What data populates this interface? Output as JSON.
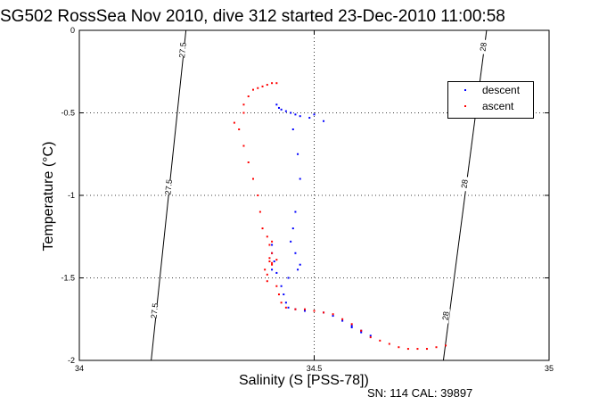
{
  "chart_data": {
    "type": "scatter",
    "title": "SG502 RossSea Nov 2010, dive 312 started 23-Dec-2010 11:00:58",
    "xlabel": "Salinity (S [PSS-78])",
    "ylabel": "Temperature (°C)",
    "xlim": [
      34,
      35
    ],
    "ylim": [
      -2,
      0
    ],
    "xticks": [
      "34",
      "34.5",
      "35"
    ],
    "yticks": [
      "0",
      "-0.5",
      "-1",
      "-1.5",
      "-2"
    ],
    "grid": true,
    "legend_position": "top-right",
    "footer": "SN: 114  CAL: 39897",
    "isopycnals": [
      {
        "label": "27.5",
        "points": [
          [
            34.227,
            0
          ],
          [
            34.153,
            -2
          ]
        ],
        "label_positions": [
          [
            34.22,
            -0.12
          ],
          [
            34.19,
            -0.95
          ],
          [
            34.16,
            -1.7
          ]
        ]
      },
      {
        "label": "28",
        "points": [
          [
            34.867,
            0
          ],
          [
            34.775,
            -2
          ]
        ],
        "label_positions": [
          [
            34.86,
            -0.1
          ],
          [
            34.82,
            -0.93
          ],
          [
            34.78,
            -1.73
          ]
        ]
      }
    ],
    "series": [
      {
        "name": "descent",
        "color": "#0000ff",
        "points": [
          [
            34.42,
            -0.45
          ],
          [
            34.425,
            -0.47
          ],
          [
            34.43,
            -0.48
          ],
          [
            34.44,
            -0.49
          ],
          [
            34.45,
            -0.5
          ],
          [
            34.46,
            -0.51
          ],
          [
            34.47,
            -0.52
          ],
          [
            34.49,
            -0.53
          ],
          [
            34.5,
            -0.51
          ],
          [
            34.52,
            -0.55
          ],
          [
            34.455,
            -0.6
          ],
          [
            34.465,
            -0.75
          ],
          [
            34.47,
            -0.9
          ],
          [
            34.46,
            -1.1
          ],
          [
            34.455,
            -1.2
          ],
          [
            34.45,
            -1.28
          ],
          [
            34.46,
            -1.35
          ],
          [
            34.47,
            -1.42
          ],
          [
            34.465,
            -1.45
          ],
          [
            34.445,
            -1.5
          ],
          [
            34.43,
            -1.55
          ],
          [
            34.435,
            -1.6
          ],
          [
            34.44,
            -1.65
          ],
          [
            34.445,
            -1.68
          ],
          [
            34.46,
            -1.69
          ],
          [
            34.48,
            -1.7
          ],
          [
            34.5,
            -1.7
          ],
          [
            34.52,
            -1.71
          ],
          [
            34.54,
            -1.73
          ],
          [
            34.56,
            -1.76
          ],
          [
            34.58,
            -1.79
          ],
          [
            34.6,
            -1.82
          ],
          [
            34.62,
            -1.85
          ],
          [
            34.6,
            -1.83
          ],
          [
            34.58,
            -1.8
          ],
          [
            34.41,
            -1.3
          ],
          [
            34.41,
            -1.35
          ],
          [
            34.415,
            -1.4
          ],
          [
            34.41,
            -1.45
          ],
          [
            34.42,
            -1.47
          ]
        ]
      },
      {
        "name": "ascent",
        "color": "#ff0000",
        "points": [
          [
            34.42,
            -0.32
          ],
          [
            34.41,
            -0.32
          ],
          [
            34.4,
            -0.33
          ],
          [
            34.39,
            -0.34
          ],
          [
            34.38,
            -0.35
          ],
          [
            34.37,
            -0.36
          ],
          [
            34.36,
            -0.4
          ],
          [
            34.35,
            -0.45
          ],
          [
            34.35,
            -0.5
          ],
          [
            34.33,
            -0.56
          ],
          [
            34.34,
            -0.6
          ],
          [
            34.35,
            -0.7
          ],
          [
            34.36,
            -0.8
          ],
          [
            34.37,
            -0.9
          ],
          [
            34.38,
            -1.0
          ],
          [
            34.385,
            -1.1
          ],
          [
            34.39,
            -1.2
          ],
          [
            34.4,
            -1.25
          ],
          [
            34.405,
            -1.3
          ],
          [
            34.41,
            -1.35
          ],
          [
            34.405,
            -1.4
          ],
          [
            34.41,
            -1.42
          ],
          [
            34.395,
            -1.45
          ],
          [
            34.4,
            -1.52
          ],
          [
            34.42,
            -1.55
          ],
          [
            34.425,
            -1.6
          ],
          [
            34.43,
            -1.65
          ],
          [
            34.44,
            -1.68
          ],
          [
            34.46,
            -1.69
          ],
          [
            34.48,
            -1.69
          ],
          [
            34.5,
            -1.7
          ],
          [
            34.52,
            -1.71
          ],
          [
            34.54,
            -1.72
          ],
          [
            34.56,
            -1.75
          ],
          [
            34.58,
            -1.78
          ],
          [
            34.6,
            -1.82
          ],
          [
            34.62,
            -1.86
          ],
          [
            34.64,
            -1.88
          ],
          [
            34.66,
            -1.9
          ],
          [
            34.68,
            -1.92
          ],
          [
            34.7,
            -1.93
          ],
          [
            34.72,
            -1.93
          ],
          [
            34.74,
            -1.93
          ],
          [
            34.76,
            -1.92
          ],
          [
            34.78,
            -1.91
          ],
          [
            34.41,
            -1.28
          ],
          [
            34.405,
            -1.38
          ],
          [
            34.41,
            -1.41
          ],
          [
            34.42,
            -1.39
          ],
          [
            34.4,
            -1.48
          ]
        ]
      }
    ]
  }
}
